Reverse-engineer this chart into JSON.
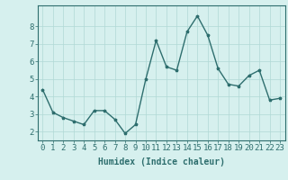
{
  "x": [
    0,
    1,
    2,
    3,
    4,
    5,
    6,
    7,
    8,
    9,
    10,
    11,
    12,
    13,
    14,
    15,
    16,
    17,
    18,
    19,
    20,
    21,
    22,
    23
  ],
  "y": [
    4.4,
    3.1,
    2.8,
    2.6,
    2.4,
    3.2,
    3.2,
    2.7,
    1.9,
    2.4,
    5.0,
    7.2,
    5.7,
    5.5,
    7.7,
    8.6,
    7.5,
    5.6,
    4.7,
    4.6,
    5.2,
    5.5,
    3.8,
    3.9
  ],
  "xlabel": "Humidex (Indice chaleur)",
  "yticks": [
    2,
    3,
    4,
    5,
    6,
    7,
    8
  ],
  "xtick_labels": [
    "0",
    "1",
    "2",
    "3",
    "4",
    "5",
    "6",
    "7",
    "8",
    "9",
    "10",
    "11",
    "12",
    "13",
    "14",
    "15",
    "16",
    "17",
    "18",
    "19",
    "20",
    "21",
    "22",
    "23"
  ],
  "ylim": [
    1.5,
    9.2
  ],
  "xlim": [
    -0.5,
    23.5
  ],
  "line_color": "#2e6e6e",
  "marker_color": "#2e6e6e",
  "bg_color": "#d6f0ee",
  "grid_color": "#b0d8d5",
  "xlabel_color": "#2e6e6e",
  "tick_color": "#2e6e6e",
  "spine_color": "#2e6e6e",
  "xlabel_fontsize": 7,
  "tick_fontsize": 6.5,
  "marker": "*",
  "marker_size": 2.5,
  "line_width": 1.0
}
